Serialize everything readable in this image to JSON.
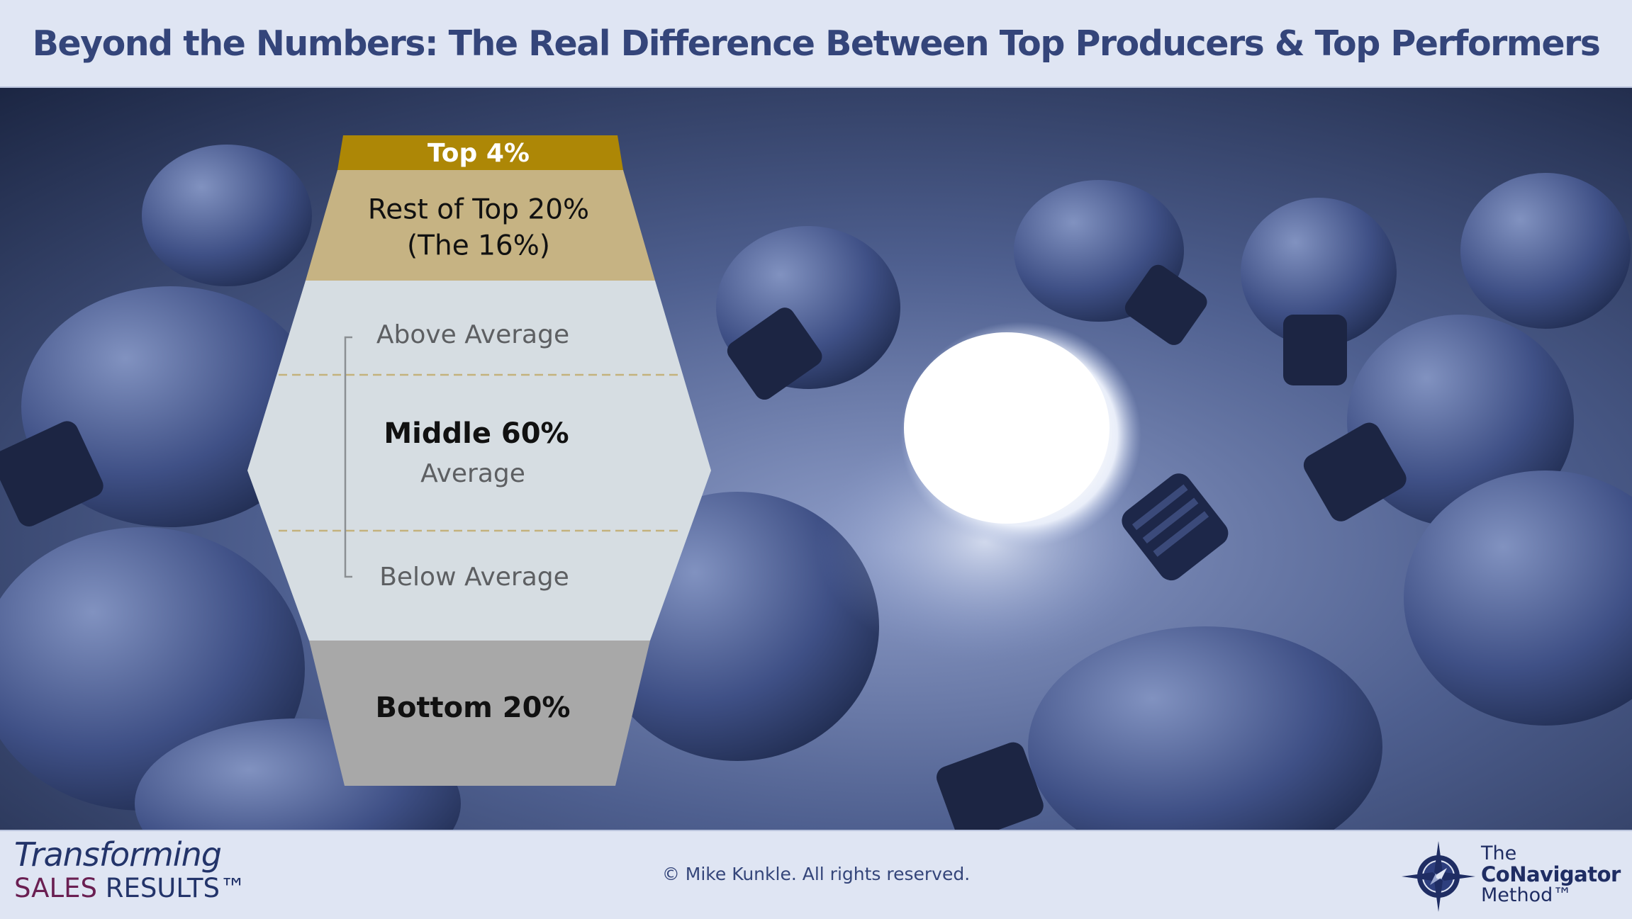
{
  "header": {
    "title": "Beyond the Numbers: The Real Difference Between Top Producers & Top Performers"
  },
  "pyramid": {
    "top4": "Top 4%",
    "rest_top20_line1": "Rest of Top 20%",
    "rest_top20_line2": "(The 16%)",
    "above_average": "Above Average",
    "middle": "Middle 60%",
    "average": "Average",
    "below_average": "Below Average",
    "bottom": "Bottom 20%"
  },
  "footer": {
    "brand_line1": "Transforming",
    "brand_line2_accent": "SALES",
    "brand_line2_rest": " RESULTS™",
    "copyright": "© Mike Kunkle. All rights reserved.",
    "method_line1": "The",
    "method_line2": "CoNavigator",
    "method_line3": "Method™"
  },
  "colors": {
    "title": "#34457a",
    "gold_dark": "#ad8706",
    "gold_light": "#c6b383",
    "middle_fill": "#d6dde2",
    "bottom_fill": "#a8a8a8"
  }
}
